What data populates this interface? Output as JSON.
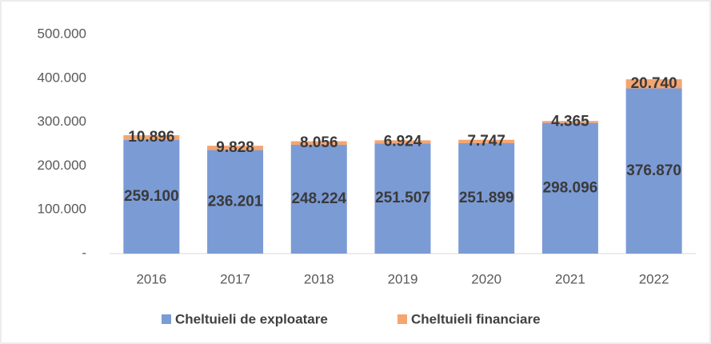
{
  "chart_data": {
    "type": "stacked_bar",
    "categories": [
      "2016",
      "2017",
      "2018",
      "2019",
      "2020",
      "2021",
      "2022"
    ],
    "series": [
      {
        "name": "Cheltuieli de exploatare",
        "color": "#7b9bd5",
        "values": [
          259100,
          236201,
          248224,
          251507,
          251899,
          298096,
          376870
        ],
        "value_labels": [
          "259.100",
          "236.201",
          "248.224",
          "251.507",
          "251.899",
          "298.096",
          "376.870"
        ]
      },
      {
        "name": "Cheltuieli financiare",
        "color": "#f4a571",
        "values": [
          10896,
          9828,
          8056,
          6924,
          7747,
          4365,
          20740
        ],
        "value_labels": [
          "10.896",
          "9.828",
          "8.056",
          "6.924",
          "7.747",
          "4.365",
          "20.740"
        ]
      }
    ],
    "ylim": [
      0,
      500000
    ],
    "yticks": [
      {
        "value": 0,
        "label": "-"
      },
      {
        "value": 100000,
        "label": "100.000"
      },
      {
        "value": 200000,
        "label": "200.000"
      },
      {
        "value": 300000,
        "label": "300.000"
      },
      {
        "value": 400000,
        "label": "400.000"
      },
      {
        "value": 500000,
        "label": "500.000"
      }
    ],
    "legend": "bottom"
  }
}
